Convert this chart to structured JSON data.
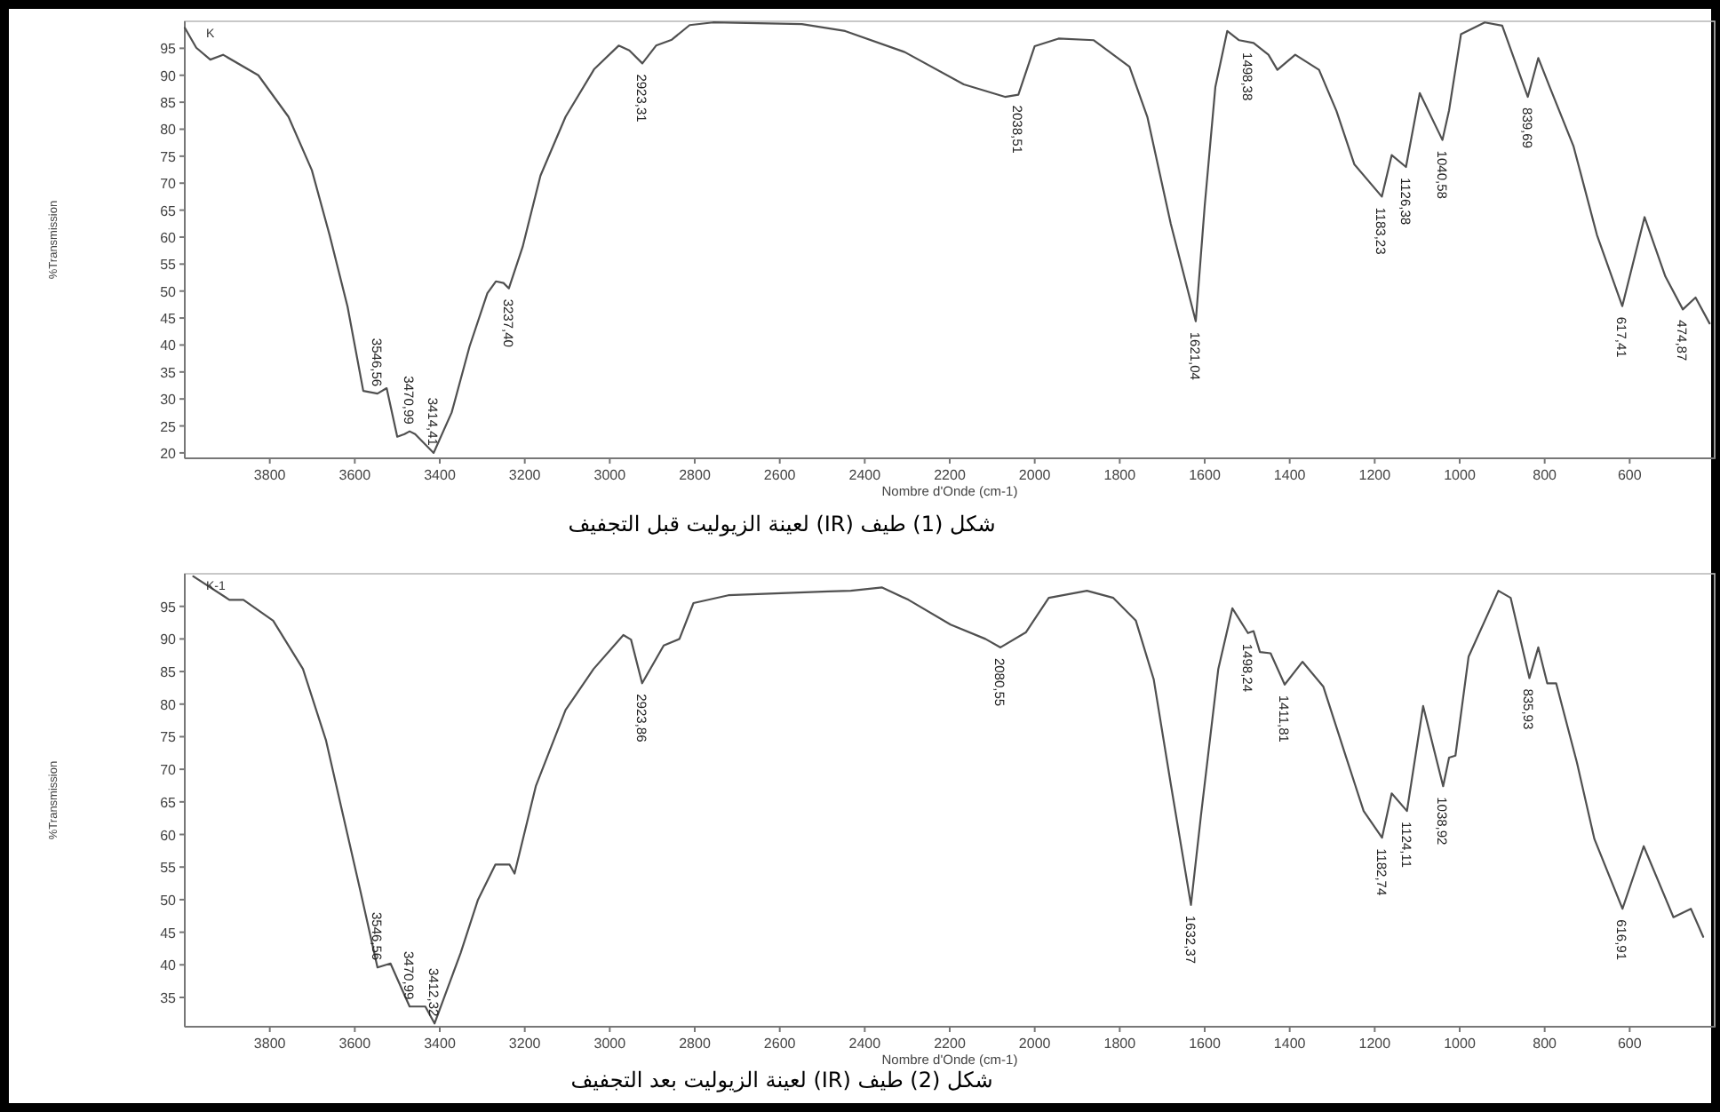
{
  "chart_data": [
    {
      "type": "line",
      "xlabel": "Nombre d'Onde (cm-1)",
      "ylabel": "%Transmission",
      "color": "#505050",
      "xlim": [
        4000,
        400
      ],
      "ylim": [
        19,
        100
      ],
      "xticks": [
        3800,
        3600,
        3400,
        3200,
        3000,
        2800,
        2600,
        2400,
        2200,
        2000,
        1800,
        1600,
        1400,
        1200,
        1000,
        800,
        600
      ],
      "yticks": [
        20,
        25,
        30,
        35,
        40,
        45,
        50,
        55,
        60,
        65,
        70,
        75,
        80,
        85,
        90,
        95
      ],
      "x": [
        4000,
        3973,
        3940,
        3910,
        3827,
        3756,
        3701,
        3659,
        3617,
        3580,
        3546.56,
        3525,
        3500,
        3483,
        3470.99,
        3458,
        3414.41,
        3372,
        3330,
        3288,
        3268,
        3250,
        3237.4,
        3205,
        3163,
        3104,
        3037,
        2979,
        2954,
        2923.31,
        2891,
        2854,
        2812,
        2757,
        2548,
        2446,
        2306,
        2167,
        2070,
        2038.51,
        2000,
        1944,
        1861,
        1777,
        1735,
        1680,
        1621.04,
        1600,
        1575,
        1547,
        1519,
        1485,
        1450,
        1429,
        1387,
        1331,
        1290,
        1248,
        1183.23,
        1160,
        1126.38,
        1094,
        1040.58,
        1025,
        997,
        941,
        900,
        839.69,
        815,
        788,
        732,
        677,
        617.41,
        565,
        516,
        474.87,
        445,
        412
      ],
      "values": [
        98.8,
        95.1,
        92.9,
        93.8,
        90,
        82.3,
        72.4,
        60.3,
        47.1,
        31.5,
        31,
        32,
        23,
        23.5,
        24,
        23.5,
        20,
        27.5,
        39.7,
        49.6,
        51.8,
        51.5,
        50.5,
        58.2,
        71.4,
        82.3,
        91.1,
        95.5,
        94.6,
        92.2,
        95.5,
        96.6,
        99.3,
        99.8,
        99.5,
        98.2,
        94.3,
        88.3,
        86,
        86.4,
        95.4,
        96.8,
        96.5,
        91.6,
        82.3,
        62.5,
        44.4,
        65.8,
        87.8,
        98.2,
        96.5,
        96,
        93.8,
        91,
        93.8,
        91,
        83.4,
        73.5,
        67.5,
        75.2,
        73,
        86.7,
        78,
        83.5,
        97.6,
        99.8,
        99.2,
        86,
        93.2,
        87.8,
        76.8,
        60.4,
        47.2,
        63.7,
        52.7,
        46.6,
        48.8,
        44
      ],
      "annotations": [
        "K",
        {
          "text": "3546,56",
          "x": 3546.56,
          "y": 31
        },
        {
          "text": "3470,99",
          "x": 3470.99,
          "y": 24
        },
        {
          "text": "3414,41",
          "x": 3414.41,
          "y": 20
        },
        {
          "text": "3237,40",
          "x": 3237.4,
          "y": 50.5
        },
        {
          "text": "2923,31",
          "x": 2923.31,
          "y": 92.2
        },
        {
          "text": "2038,51",
          "x": 2038.51,
          "y": 86.4
        },
        {
          "text": "1621,04",
          "x": 1621.04,
          "y": 44.4
        },
        {
          "text": "1498,38",
          "x": 1498.38,
          "y": 96.2
        },
        {
          "text": "1183,23",
          "x": 1183.23,
          "y": 67.5
        },
        {
          "text": "1126,38",
          "x": 1126.38,
          "y": 73
        },
        {
          "text": "1040,58",
          "x": 1040.58,
          "y": 78
        },
        {
          "text": "839,69",
          "x": 839.69,
          "y": 86
        },
        {
          "text": "617,41",
          "x": 617.41,
          "y": 47.2
        },
        {
          "text": "474,87",
          "x": 474.87,
          "y": 46.6
        },
        "شكل (1) طيف (IR) لعينة الزيوليت قبل التجفيف"
      ]
    },
    {
      "type": "line",
      "xlabel": "Nombre d'Onde (cm-1)",
      "ylabel": "%Transmission",
      "color": "#505050",
      "xlim": [
        4000,
        400
      ],
      "ylim": [
        30.5,
        100
      ],
      "xticks": [
        3800,
        3600,
        3400,
        3200,
        3000,
        2800,
        2600,
        2400,
        2200,
        2000,
        1800,
        1600,
        1400,
        1200,
        1000,
        800,
        600
      ],
      "yticks": [
        35,
        40,
        45,
        50,
        55,
        60,
        65,
        70,
        75,
        80,
        85,
        90,
        95
      ],
      "x": [
        3980,
        3895,
        3862,
        3792,
        3722,
        3668,
        3627,
        3586,
        3546.56,
        3516,
        3470.99,
        3434,
        3412.32,
        3351,
        3310,
        3269,
        3236,
        3224,
        3174,
        3104,
        3038,
        2968,
        2950,
        2923.86,
        2873,
        2836,
        2803,
        2721,
        2486,
        2433,
        2359,
        2297,
        2198,
        2116,
        2080.55,
        2021,
        1967,
        1877,
        1815,
        1762,
        1720,
        1679,
        1632.37,
        1609,
        1568,
        1535,
        1498.24,
        1485,
        1470,
        1445,
        1411.81,
        1370,
        1321,
        1267,
        1226,
        1182.74,
        1160,
        1124.11,
        1086,
        1038.92,
        1025,
        1010,
        979,
        909,
        880,
        835.93,
        815,
        794,
        773,
        724,
        683,
        616.91,
        567,
        497,
        456,
        427
      ],
      "values": [
        99.6,
        96,
        96,
        92.8,
        85.4,
        74.5,
        62.8,
        51.1,
        39.6,
        40.2,
        33.6,
        33.6,
        31,
        41.8,
        50,
        55.4,
        55.4,
        54,
        67.4,
        79.1,
        85.4,
        90.6,
        89.9,
        83.2,
        89,
        90,
        95.5,
        96.7,
        97.3,
        97.4,
        97.9,
        96,
        92.2,
        90,
        88.7,
        91,
        96.3,
        97.4,
        96.3,
        92.8,
        83.8,
        67.4,
        49.2,
        62.8,
        85.4,
        94.7,
        90.9,
        91.2,
        88,
        87.8,
        83,
        86.5,
        82.7,
        71.8,
        63.6,
        59.5,
        66.3,
        63.6,
        79.7,
        67.4,
        71.8,
        72.1,
        87.3,
        97.4,
        96.3,
        84,
        88.7,
        83.2,
        83.2,
        71,
        59.3,
        48.6,
        58.2,
        47.3,
        48.6,
        44.3
      ],
      "annotations": [
        "K-1",
        {
          "text": "3546,56",
          "x": 3546.56,
          "y": 39.6
        },
        {
          "text": "3470,99",
          "x": 3470.99,
          "y": 33.6
        },
        {
          "text": "3412,32",
          "x": 3412.32,
          "y": 31
        },
        {
          "text": "2923,86",
          "x": 2923.86,
          "y": 83.2
        },
        {
          "text": "2080,55",
          "x": 2080.55,
          "y": 88.7
        },
        {
          "text": "1632,37",
          "x": 1632.37,
          "y": 49.2
        },
        {
          "text": "1498,24",
          "x": 1498.24,
          "y": 90.9
        },
        {
          "text": "1411,81",
          "x": 1411.81,
          "y": 83
        },
        {
          "text": "1182,74",
          "x": 1182.74,
          "y": 59.5
        },
        {
          "text": "1124,11",
          "x": 1124.11,
          "y": 63.6
        },
        {
          "text": "1038,92",
          "x": 1038.92,
          "y": 67.4
        },
        {
          "text": "835,93",
          "x": 835.93,
          "y": 84
        },
        {
          "text": "616,91",
          "x": 616.91,
          "y": 48.6
        },
        "شكل (2) طيف (IR) لعينة الزيوليت بعد التجفيف"
      ]
    }
  ]
}
